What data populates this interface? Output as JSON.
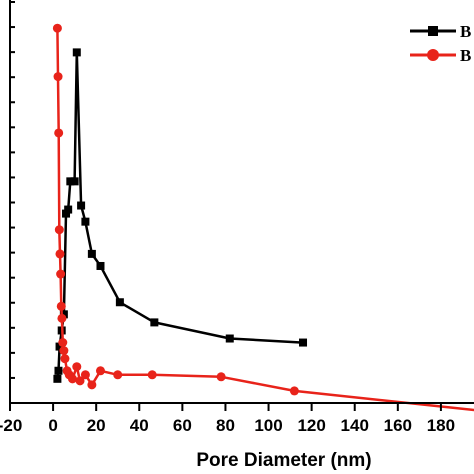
{
  "chart_data": {
    "type": "line",
    "title": "",
    "xlabel": "Pore Diameter (nm)",
    "ylabel": "",
    "xlim": [
      -20,
      200
    ],
    "ylim": [
      0,
      1
    ],
    "x_ticks": [
      -20,
      0,
      20,
      40,
      60,
      80,
      100,
      120,
      140,
      160,
      180
    ],
    "x_tick_labels": [
      "-20",
      "0",
      "20",
      "40",
      "60",
      "80",
      "100",
      "120",
      "140",
      "160",
      "180"
    ],
    "y_tick_count": 16,
    "legend": {
      "position": "top-right",
      "entries": [
        "B",
        "B"
      ]
    },
    "series": [
      {
        "name": "B",
        "color": "#000000",
        "marker": "square",
        "points": [
          [
            2,
            0.06
          ],
          [
            2.5,
            0.08
          ],
          [
            3,
            0.14
          ],
          [
            4,
            0.18
          ],
          [
            5,
            0.22
          ],
          [
            6,
            0.47
          ],
          [
            7,
            0.48
          ],
          [
            8,
            0.55
          ],
          [
            10,
            0.55
          ],
          [
            11,
            0.87
          ],
          [
            13,
            0.49
          ],
          [
            15,
            0.45
          ],
          [
            18,
            0.37
          ],
          [
            22,
            0.34
          ],
          [
            31,
            0.25
          ],
          [
            47,
            0.2
          ],
          [
            82,
            0.16
          ],
          [
            116,
            0.15
          ]
        ]
      },
      {
        "name": "B",
        "color": "#e8231a",
        "marker": "circle",
        "points": [
          [
            2,
            0.93
          ],
          [
            2.3,
            0.81
          ],
          [
            2.6,
            0.67
          ],
          [
            2.9,
            0.43
          ],
          [
            3.2,
            0.37
          ],
          [
            3.5,
            0.32
          ],
          [
            3.8,
            0.24
          ],
          [
            4.1,
            0.21
          ],
          [
            4.5,
            0.15
          ],
          [
            5,
            0.13
          ],
          [
            5.5,
            0.11
          ],
          [
            6.5,
            0.08
          ],
          [
            7.5,
            0.07
          ],
          [
            9,
            0.06
          ],
          [
            11,
            0.09
          ],
          [
            12.5,
            0.055
          ],
          [
            15,
            0.07
          ],
          [
            18,
            0.045
          ],
          [
            22,
            0.08
          ],
          [
            30,
            0.07
          ],
          [
            46,
            0.07
          ],
          [
            78,
            0.065
          ],
          [
            112,
            0.03
          ],
          [
            200,
            -0.02
          ]
        ]
      }
    ]
  }
}
